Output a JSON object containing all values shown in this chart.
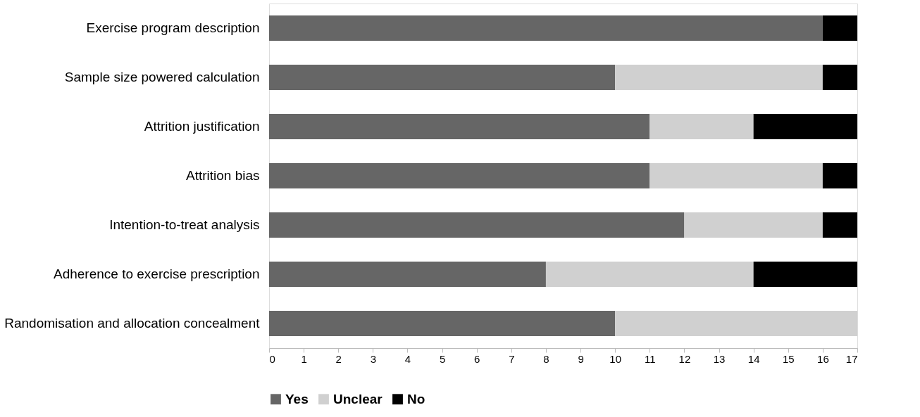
{
  "chart_data": {
    "type": "bar",
    "orientation": "horizontal",
    "stacked": true,
    "categories": [
      "Exercise  program description",
      "Sample size powered calculation",
      "Attrition justification",
      "Attrition bias",
      "Intention-to-treat analysis",
      "Adherence  to exercise prescription",
      "Randomisation and allocation concealment"
    ],
    "series": [
      {
        "name": "Yes",
        "color": "#666666",
        "values": [
          16,
          10,
          11,
          11,
          12,
          8,
          10
        ]
      },
      {
        "name": "Unclear",
        "color": "#d0d0d0",
        "values": [
          0,
          6,
          3,
          5,
          4,
          6,
          7
        ]
      },
      {
        "name": "No",
        "color": "#000000",
        "values": [
          1,
          1,
          3,
          1,
          1,
          3,
          0
        ]
      }
    ],
    "xlim": [
      0,
      17
    ],
    "xticks": [
      0,
      1,
      2,
      3,
      4,
      5,
      6,
      7,
      8,
      9,
      10,
      11,
      12,
      13,
      14,
      15,
      16,
      17
    ],
    "grid": false,
    "legend": "bottom"
  }
}
